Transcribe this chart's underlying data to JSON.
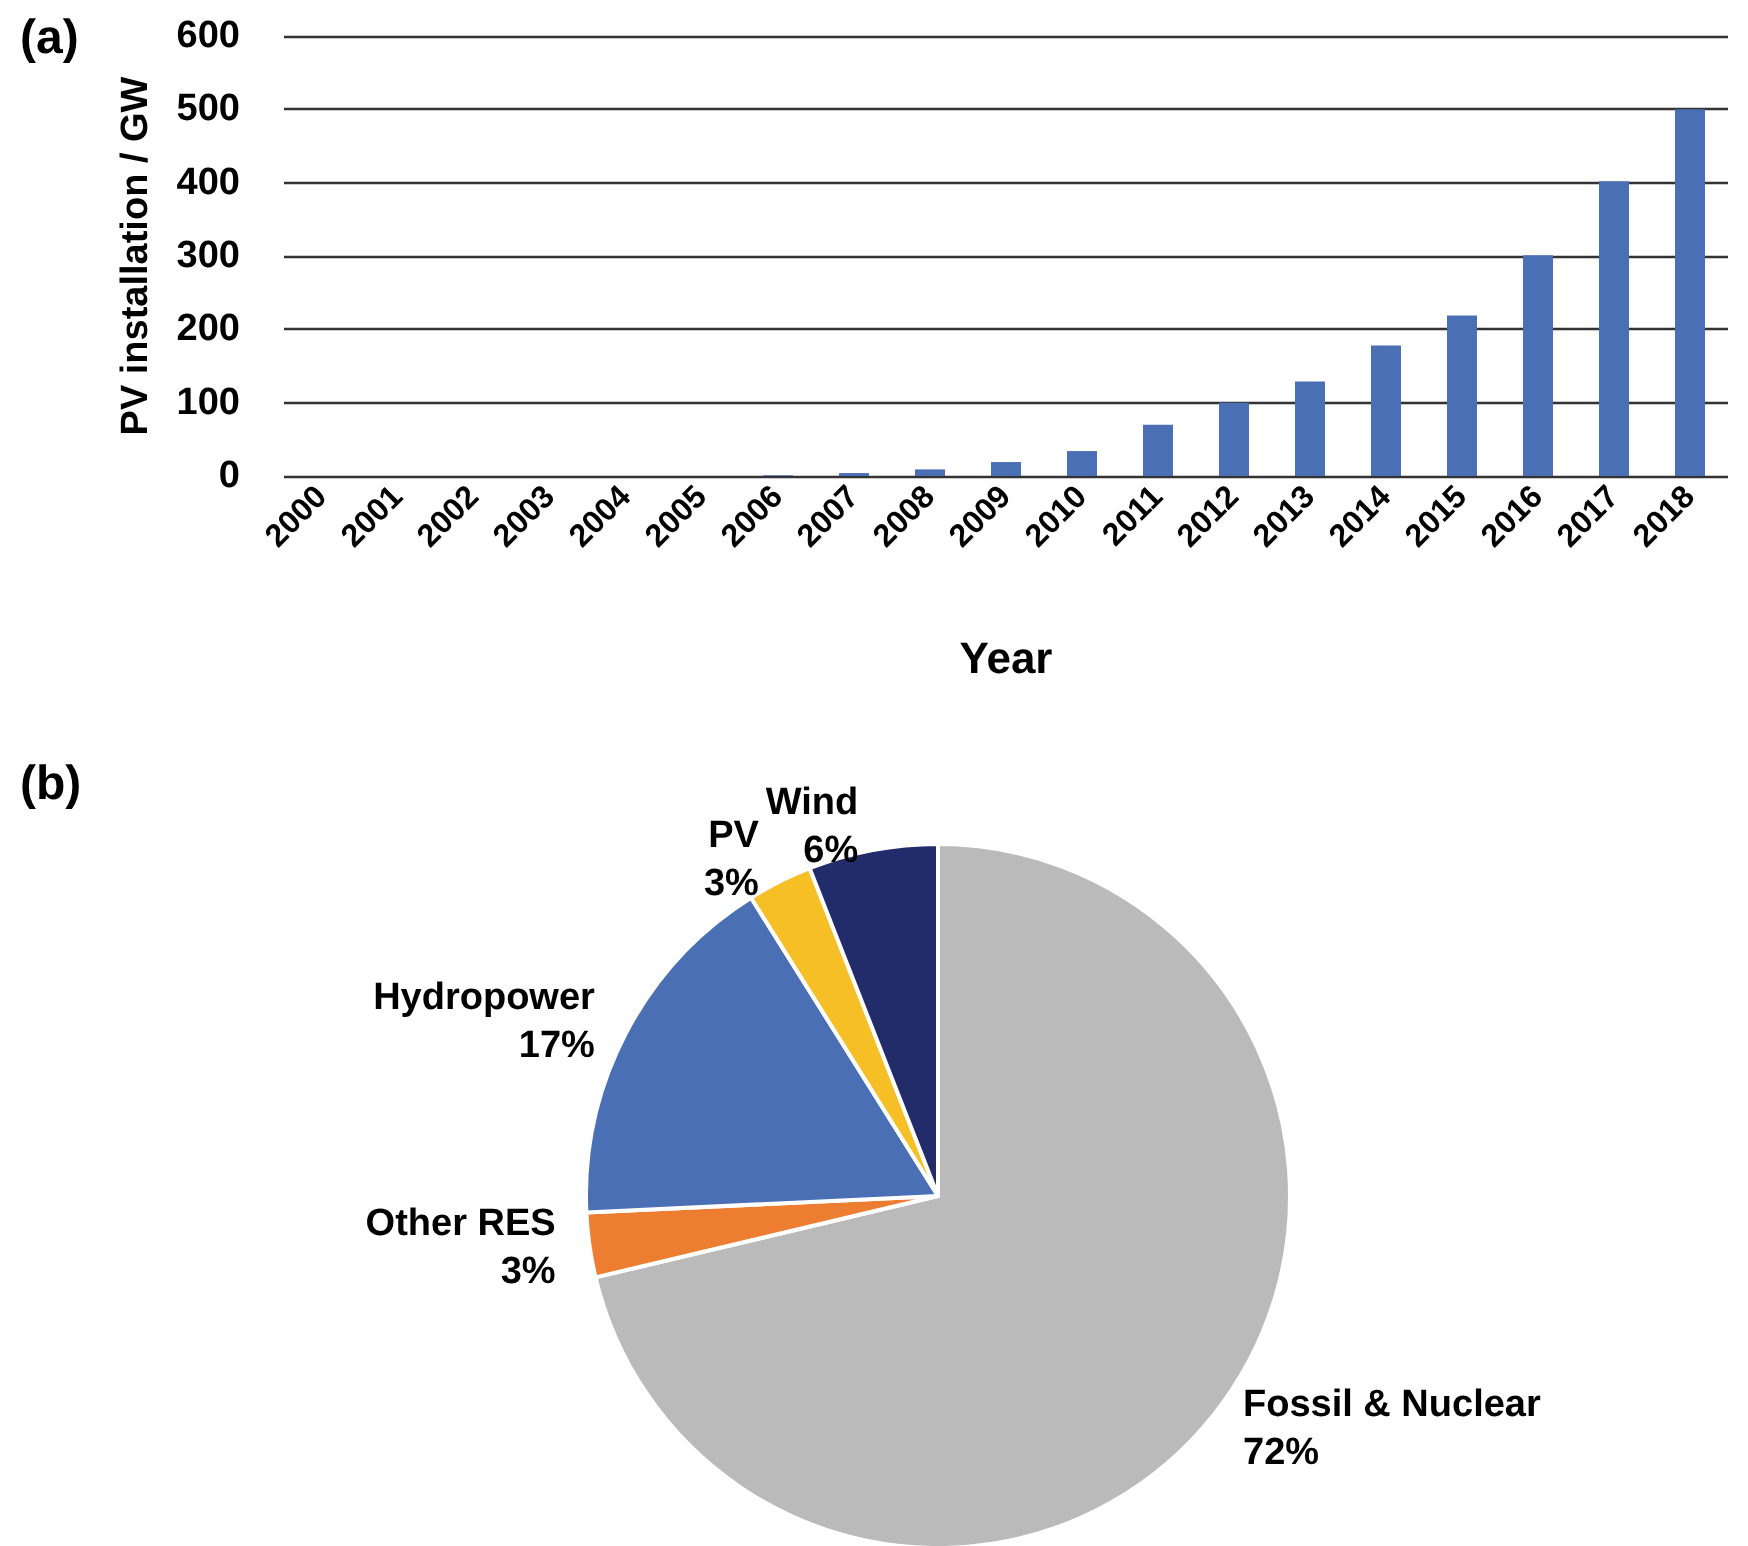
{
  "chart_data": [
    {
      "type": "bar",
      "title": "(a)",
      "xlabel": "Year",
      "ylabel": "PV installation / GW",
      "categories": [
        "2000",
        "2001",
        "2002",
        "2003",
        "2004",
        "2005",
        "2006",
        "2007",
        "2008",
        "2009",
        "2010",
        "2011",
        "2012",
        "2013",
        "2014",
        "2015",
        "2016",
        "2017",
        "2018"
      ],
      "values": [
        0,
        0,
        0,
        0,
        0,
        0,
        1,
        4,
        9,
        19,
        34,
        70,
        100,
        129,
        178,
        219,
        301,
        402,
        500
      ],
      "color": "#4a6fb5",
      "ylim": [
        0,
        600
      ],
      "yticks": [
        0,
        100,
        200,
        300,
        400,
        500,
        600
      ],
      "grid": "y",
      "legend": false
    },
    {
      "type": "pie",
      "title": "(b)",
      "categories": [
        "Fossil & Nuclear",
        "Other RES",
        "Hydropower",
        "PV",
        "Wind"
      ],
      "values": [
        72,
        3,
        17,
        3,
        6
      ],
      "value_labels": [
        "72%",
        "3%",
        "17%",
        "3%",
        "6%"
      ],
      "colors": [
        "#bababa",
        "#ed7d31",
        "#4a6fb5",
        "#f6bf26",
        "#232c6b"
      ],
      "legend": false
    }
  ]
}
